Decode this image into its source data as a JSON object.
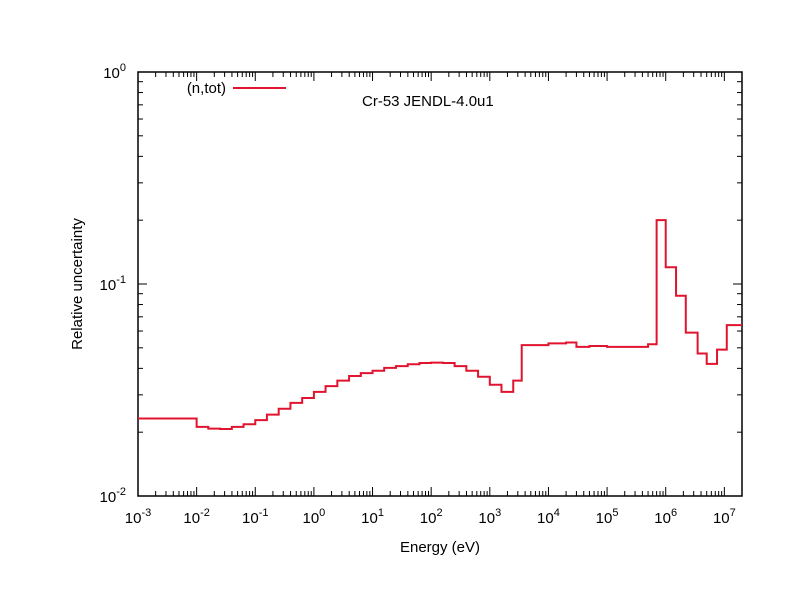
{
  "chart_data": {
    "type": "line",
    "title": "Cr-53 JENDL-4.0u1",
    "xlabel": "Energy (eV)",
    "ylabel": "Relative uncertainty",
    "x_scale": "log",
    "y_scale": "log",
    "xlim": [
      0.001,
      20000000
    ],
    "ylim": [
      0.01,
      1
    ],
    "grid": false,
    "legend_position": "top-left",
    "x_ticks": [
      {
        "base": "10",
        "exp": "-3",
        "value": 0.001
      },
      {
        "base": "10",
        "exp": "-2",
        "value": 0.01
      },
      {
        "base": "10",
        "exp": "-1",
        "value": 0.1
      },
      {
        "base": "10",
        "exp": "0",
        "value": 1
      },
      {
        "base": "10",
        "exp": "1",
        "value": 10
      },
      {
        "base": "10",
        "exp": "2",
        "value": 100
      },
      {
        "base": "10",
        "exp": "3",
        "value": 1000
      },
      {
        "base": "10",
        "exp": "4",
        "value": 10000
      },
      {
        "base": "10",
        "exp": "5",
        "value": 100000
      },
      {
        "base": "10",
        "exp": "6",
        "value": 1000000
      },
      {
        "base": "10",
        "exp": "7",
        "value": 10000000
      }
    ],
    "y_ticks": [
      {
        "base": "10",
        "exp": "-2",
        "value": 0.01
      },
      {
        "base": "10",
        "exp": "-1",
        "value": 0.1
      },
      {
        "base": "10",
        "exp": "0",
        "value": 1
      }
    ],
    "series": [
      {
        "name": "(n,tot)",
        "color": "#e0142e",
        "style": "step",
        "bin_edges": [
          0.001,
          0.01,
          0.0158,
          0.0251,
          0.0398,
          0.0631,
          0.1,
          0.158,
          0.251,
          0.398,
          0.631,
          1,
          1.58,
          2.51,
          3.98,
          6.31,
          10,
          15.8,
          25.1,
          39.8,
          63.1,
          100,
          158,
          251,
          398,
          631,
          1000,
          1580,
          2510,
          3500,
          10000,
          20000,
          30000,
          50000,
          100000,
          200000,
          500000,
          700000,
          1000000,
          1500000,
          2200000,
          3500000,
          5000000,
          7500000,
          11000000,
          20000000
        ],
        "values": [
          0.0232,
          0.0212,
          0.0208,
          0.0207,
          0.0212,
          0.0218,
          0.0228,
          0.0242,
          0.0258,
          0.0275,
          0.029,
          0.031,
          0.033,
          0.035,
          0.0368,
          0.038,
          0.039,
          0.0402,
          0.041,
          0.0418,
          0.0424,
          0.0426,
          0.0424,
          0.041,
          0.039,
          0.0365,
          0.0335,
          0.031,
          0.035,
          0.0515,
          0.0525,
          0.053,
          0.0505,
          0.051,
          0.0505,
          0.0505,
          0.052,
          0.2,
          0.12,
          0.088,
          0.059,
          0.047,
          0.042,
          0.049,
          0.064
        ]
      }
    ]
  }
}
